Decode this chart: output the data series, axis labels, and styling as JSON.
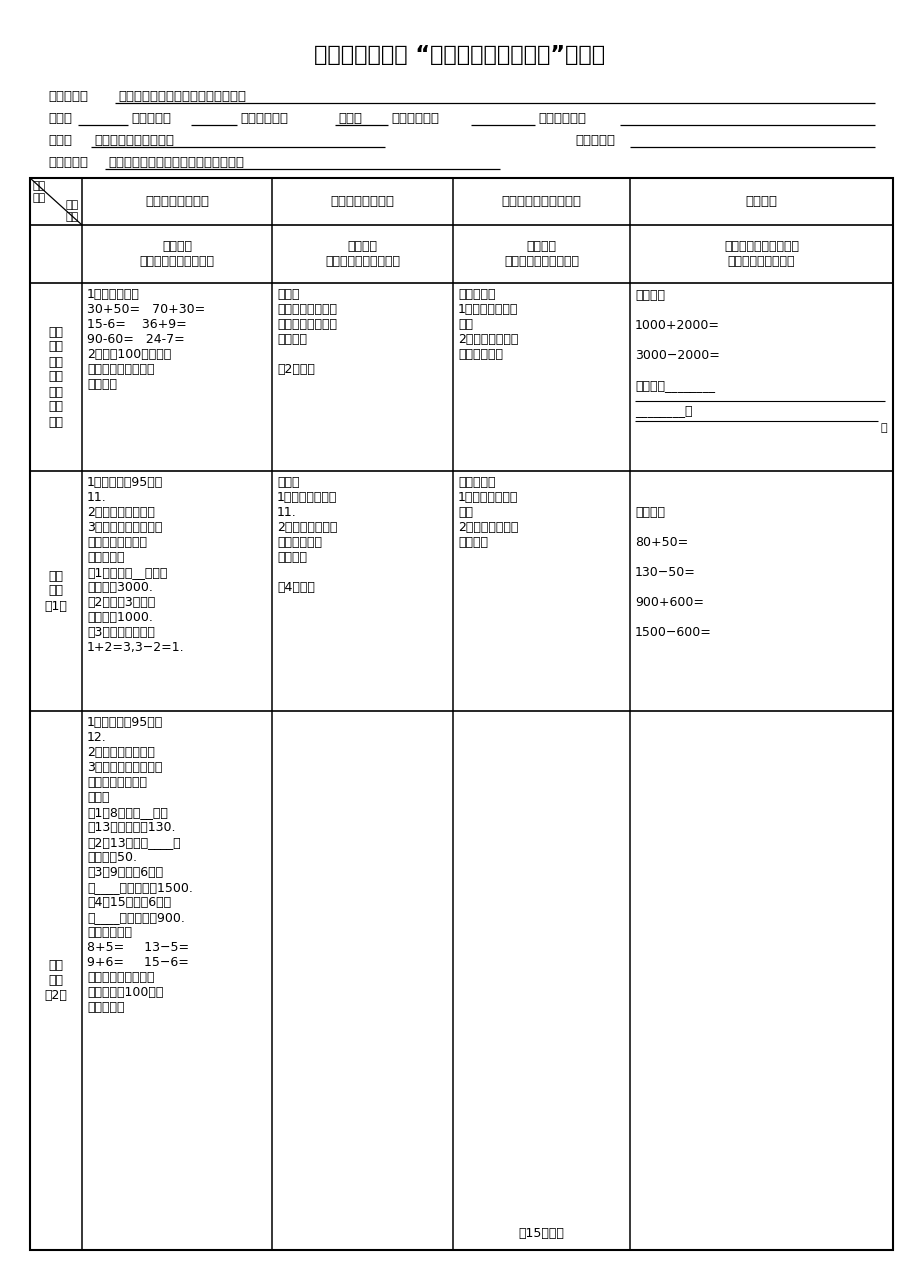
{
  "title": "仁怀市中枢一小 “四性四环节生态课堂”导学案",
  "daily_sentence_label": "每日一句：",
  "daily_sentence": "树不修，长不直；人不学，没知识。",
  "class_label": "班级：",
  "date_label": "授课日期：",
  "initial_editor_label": "初案编制者：",
  "initial_editor": "张连秀",
  "group_editor_label": "共案编制者：",
  "case_editor_label": "个案编制者：",
  "subject_label": "课题：",
  "subject": "整百、整千数的加减法",
  "student_name_label": "学生姓名：",
  "study_goal_label": "学习目标：",
  "study_goal": "能正确熟练地口算整百整千数的加减。",
  "h1_col1": "自学（自探环节）",
  "h1_col2": "合学（探究环节）",
  "h1_col3": "展学（提质措施环节）",
  "h1_col4": "随堂笔记",
  "h1_corner_top": "课堂\n元素",
  "h1_corner_bot": "导学\n流程",
  "h2_col1": "自学指导\n（内容、学法、时间）",
  "h2_col2": "互动策略\n（内容、形式、时间）",
  "h2_col3": "展示方案\n（内容、方式、时间）",
  "h2_col4": "重点摘记、成果记录、\n知识生成、规律总结",
  "r1_label": "复习\n旧知\n（做\n好学\n习新\n知辅\n垫）",
  "r1_col1": "1、我来抢答。\n30+50=   70+30=\n15-6=    36+9=\n90-60=   24-7=\n2、说说100以内数的\n进位加法和退位减法\n的方法。",
  "r1_col2": "对学：\n小对子交流自学内\n容，互相检查，达\n成共识。\n\n（2分钟）",
  "r1_col3": "展示单元一\n1、展示自研模块\n一。\n2、写出算式，说\n明口算方法。",
  "r1_col4": "我会算：\n\n1000+2000=\n\n3000−2000=\n\n我发现了________",
  "r1_col4b": "________。",
  "r2_label": "自研\n模块\n（1）",
  "r2_col1": "1、自学教材95页列\n11.\n2、完成书上填空。\n3、自己归纳整千加减\n法（不进退位）的\n口算方法。\n（1）可以是__个千加\n　个等于3000.\n（2）所以3个千减\n个千就是1000.\n（3）也可以转化为\n1+2=3,3−2=1.",
  "r2_col2": "群学：\n1、小组内交流列\n11.\n2、小组内归纳整\n百整千数的口\n算方法。\n\n（4分钟）",
  "r2_col3": "展示单元二\n1、展示自研模块\n二。\n2、写出算式，归\n纳方法。",
  "r2_col4": "我会算：\n\n80+50=\n\n130−50=\n\n900+600=\n\n1500−600=",
  "r3_label": "自研\n模块\n（2）",
  "r3_col1": "1、自学教材95页列\n12.\n2、完成书上填空。\n3、自己归纳整百、整\n千数加减法的口算\n方法。\n（1）8个十加__个十\n是13个十，就是130.\n（2）13个十减____个\n十，就是50.\n（3）9个百加6个百\n是____个百，就是1500.\n（4）15个百减6个百\n是____个百，就是900.\n还可转化为：\n8+5=     13−5=\n9+6=     15−6=\n（只有相同单位的数\n才能转化为100以内\n数相加减）",
  "r3_col4_bottom": "（15分钟）",
  "bg_color": "#ffffff",
  "text_color": "#000000"
}
